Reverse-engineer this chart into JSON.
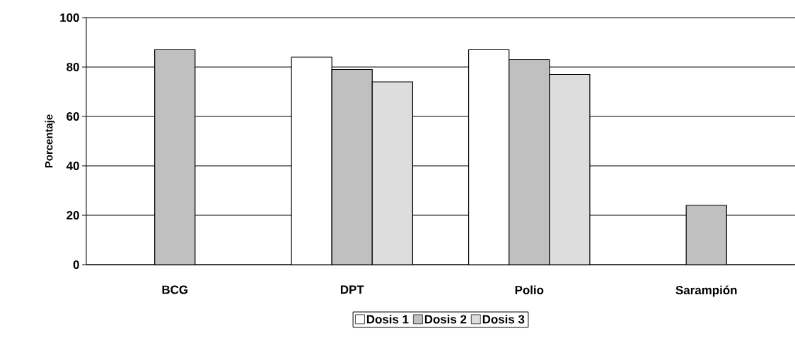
{
  "chart_data": {
    "type": "bar",
    "ylabel": "Porcentaje",
    "categories": [
      "BCG",
      "DPT",
      "Polio",
      "Sarampión"
    ],
    "series": [
      {
        "name": "Dosis 1",
        "color": "#ffffff",
        "values": [
          null,
          84,
          87,
          null
        ]
      },
      {
        "name": "Dosis 2",
        "color": "#c0c0c0",
        "values": [
          87,
          79,
          83,
          24
        ]
      },
      {
        "name": "Dosis 3",
        "color": "#dddddd",
        "values": [
          null,
          74,
          77,
          null
        ]
      }
    ],
    "ylim": [
      0,
      100
    ],
    "yticks": [
      0,
      20,
      40,
      60,
      80,
      100
    ],
    "grid": "y",
    "legend": "bottom"
  }
}
